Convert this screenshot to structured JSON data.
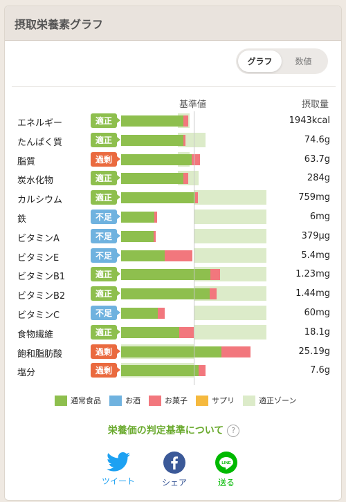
{
  "header": {
    "title": "摂取栄養素グラフ"
  },
  "toggle": {
    "graph_label": "グラフ",
    "number_label": "数値",
    "selected": "グラフ"
  },
  "columns": {
    "base_label": "基準値",
    "intake_label": "摂取量"
  },
  "colors": {
    "regular_food": "#8ebf4e",
    "alcohol": "#6fb2df",
    "snacks": "#f2777d",
    "supplement": "#f5b93e",
    "proper_zone": "#dcebc9",
    "status_ok": "#8ebf4e",
    "status_excess": "#ea6a3f",
    "status_low": "#6fb2df"
  },
  "nutrients": [
    {
      "name": "エネルギー",
      "status": "適正",
      "status_type": "ok",
      "value": "1943kcal",
      "regular": 0.86,
      "snacks": 0.06,
      "zone": [
        0.78,
        0.94
      ]
    },
    {
      "name": "たんぱく質",
      "status": "適正",
      "status_type": "ok",
      "value": "74.6g",
      "regular": 0.86,
      "snacks": 0.03,
      "zone": [
        0.78,
        1.16
      ]
    },
    {
      "name": "脂質",
      "status": "過剰",
      "status_type": "excess",
      "value": "63.7g",
      "regular": 0.97,
      "snacks": 0.12,
      "zone": [
        0.78,
        0.94
      ]
    },
    {
      "name": "炭水化物",
      "status": "適正",
      "status_type": "ok",
      "value": "284g",
      "regular": 0.86,
      "snacks": 0.06,
      "zone": [
        0.78,
        1.07
      ]
    },
    {
      "name": "カルシウム",
      "status": "適正",
      "status_type": "ok",
      "value": "759mg",
      "regular": 1.02,
      "snacks": 0.04,
      "zone": [
        1.0,
        2.0
      ]
    },
    {
      "name": "鉄",
      "status": "不足",
      "status_type": "low",
      "value": "6mg",
      "regular": 0.46,
      "snacks": 0.04,
      "zone": [
        1.0,
        2.0
      ]
    },
    {
      "name": "ビタミンA",
      "status": "不足",
      "status_type": "low",
      "value": "379µg",
      "regular": 0.45,
      "snacks": 0.03,
      "zone": [
        1.0,
        2.0
      ]
    },
    {
      "name": "ビタミンE",
      "status": "不足",
      "status_type": "low",
      "value": "5.4mg",
      "regular": 0.6,
      "snacks": 0.38,
      "zone": [
        1.0,
        2.0
      ]
    },
    {
      "name": "ビタミンB1",
      "status": "適正",
      "status_type": "ok",
      "value": "1.23mg",
      "regular": 1.23,
      "snacks": 0.13,
      "zone": [
        1.0,
        2.0
      ]
    },
    {
      "name": "ビタミンB2",
      "status": "適正",
      "status_type": "ok",
      "value": "1.44mg",
      "regular": 1.22,
      "snacks": 0.09,
      "zone": [
        1.0,
        2.0
      ]
    },
    {
      "name": "ビタミンC",
      "status": "不足",
      "status_type": "low",
      "value": "60mg",
      "regular": 0.5,
      "snacks": 0.1,
      "zone": [
        1.0,
        2.0
      ]
    },
    {
      "name": "食物繊維",
      "status": "適正",
      "status_type": "ok",
      "value": "18.1g",
      "regular": 0.8,
      "snacks": 0.2,
      "zone": [
        1.0,
        2.0
      ]
    },
    {
      "name": "飽和脂肪酸",
      "status": "過剰",
      "status_type": "excess",
      "value": "25.19g",
      "regular": 1.38,
      "snacks": 0.4,
      "zone": [
        0.0,
        1.0
      ]
    },
    {
      "name": "塩分",
      "status": "過剰",
      "status_type": "excess",
      "value": "7.6g",
      "regular": 1.07,
      "snacks": 0.09,
      "zone": [
        0.0,
        1.0
      ]
    }
  ],
  "legend": [
    {
      "label": "通常食品",
      "color_key": "regular_food",
      "icon": "green-square"
    },
    {
      "label": "お酒",
      "color_key": "alcohol",
      "icon": "blue-square"
    },
    {
      "label": "お菓子",
      "color_key": "snacks",
      "icon": "pink-square"
    },
    {
      "label": "サプリ",
      "color_key": "supplement",
      "icon": "orange-square"
    },
    {
      "label": "適正ゾーン",
      "color_key": "proper_zone",
      "icon": "pale-green-square"
    }
  ],
  "criteria": {
    "label": "栄養価の判定基準について",
    "help_icon": "?"
  },
  "share": {
    "twitter": {
      "label": "ツイート",
      "icon": "twitter-icon",
      "color": "#1da1f2"
    },
    "facebook": {
      "label": "シェア",
      "icon": "facebook-icon",
      "color": "#3b5998"
    },
    "line": {
      "label": "送る",
      "icon": "line-icon",
      "color": "#00b900",
      "badge_text": "LINE"
    }
  }
}
